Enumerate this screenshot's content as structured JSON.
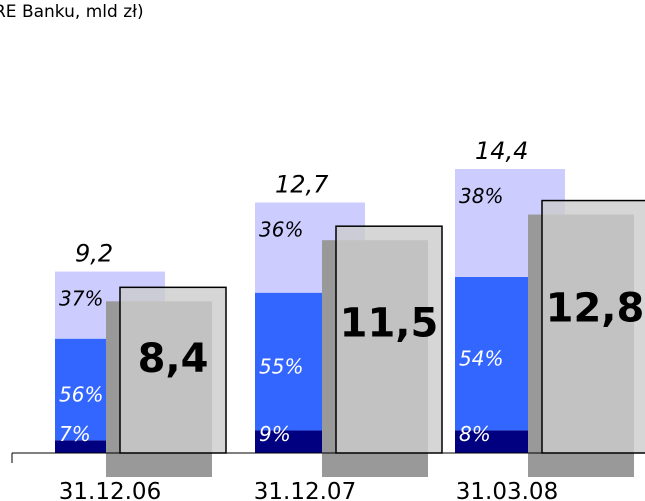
{
  "chart_data": {
    "type": "bar",
    "title": "RE Banku, mld zł)",
    "categories": [
      "31.12.06",
      "31.12.07",
      "31.03.08"
    ],
    "stacked": {
      "totals": [
        9.2,
        12.7,
        14.4
      ],
      "total_labels": [
        "9,2",
        "12,7",
        "14,4"
      ],
      "series": [
        {
          "values": [
            7,
            9,
            8
          ],
          "labels": [
            "7%",
            "9%",
            "8%"
          ],
          "color": "#000080"
        },
        {
          "values": [
            56,
            55,
            54
          ],
          "labels": [
            "56%",
            "55%",
            "54%"
          ],
          "color": "#3366ff"
        },
        {
          "values": [
            37,
            36,
            38
          ],
          "labels": [
            "37%",
            "36%",
            "38%"
          ],
          "color": "#ccccff"
        }
      ]
    },
    "overlay": {
      "values": [
        8.4,
        11.5,
        12.8
      ],
      "labels": [
        "8,4",
        "11,5",
        "12,8"
      ],
      "color": "#cccccc"
    },
    "ylim": [
      0,
      16
    ]
  }
}
